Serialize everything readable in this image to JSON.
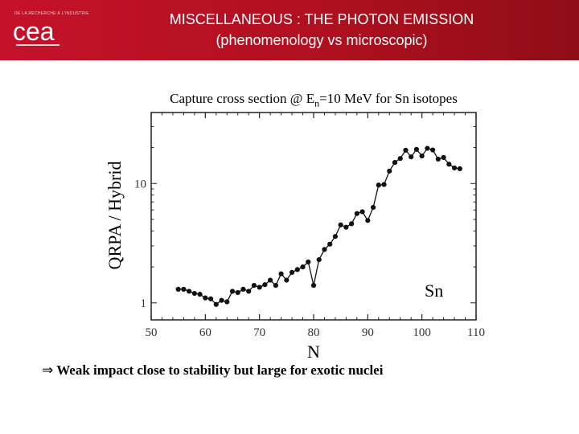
{
  "header": {
    "org_small": "DE LA RECHERCHE À L'INDUSTRIE",
    "logo_text": "cea",
    "title_line1": "MISCELLANEOUS : THE PHOTON EMISSION",
    "title_line2": "(phenomenology vs microscopic)",
    "accent_color": "#c4122a"
  },
  "chart_data": {
    "type": "line",
    "title": "Capture cross section @ E",
    "title_sub": "n",
    "title_rest": "=10 MeV for Sn isotopes",
    "xlabel": "N",
    "ylabel": "QRPA / Hybrid",
    "annotation": "Sn",
    "xlim": [
      50,
      110
    ],
    "ylim": [
      0.72,
      39.3
    ],
    "yscale": "log",
    "xticks": [
      50,
      60,
      70,
      80,
      90,
      100,
      110
    ],
    "ytick_labels": [
      {
        "value": 1,
        "label": "1"
      },
      {
        "value": 10,
        "label": "10"
      }
    ],
    "series": [
      {
        "name": "Sn",
        "x": [
          55,
          56,
          57,
          58,
          59,
          60,
          61,
          62,
          63,
          64,
          65,
          66,
          67,
          68,
          69,
          70,
          71,
          72,
          73,
          74,
          75,
          76,
          77,
          78,
          79,
          80,
          81,
          82,
          83,
          84,
          85,
          86,
          87,
          88,
          89,
          90,
          91,
          92,
          93,
          94,
          95,
          96,
          97,
          98,
          99,
          100,
          101,
          102,
          103,
          104,
          105,
          106,
          107
        ],
        "y": [
          1.3,
          1.3,
          1.25,
          1.2,
          1.18,
          1.1,
          1.08,
          0.97,
          1.05,
          1.02,
          1.25,
          1.22,
          1.3,
          1.25,
          1.4,
          1.35,
          1.42,
          1.55,
          1.4,
          1.75,
          1.55,
          1.8,
          1.9,
          2.0,
          2.2,
          1.4,
          2.3,
          2.8,
          3.1,
          3.6,
          4.5,
          4.3,
          4.6,
          5.6,
          5.8,
          4.9,
          6.3,
          9.7,
          9.8,
          12.7,
          15.0,
          16.2,
          19.0,
          16.7,
          19.3,
          17.0,
          19.7,
          19.1,
          16.0,
          16.5,
          14.5,
          13.5,
          13.3
        ]
      }
    ]
  },
  "conclusion": {
    "arrow": "⇒",
    "text": "Weak impact close to stability but large for exotic nuclei"
  }
}
